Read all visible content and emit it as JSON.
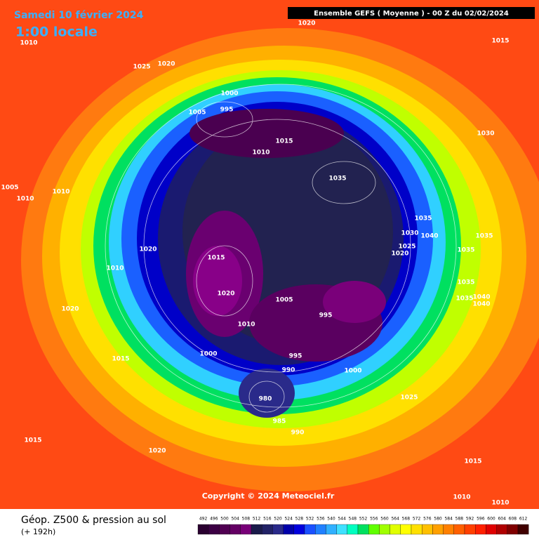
{
  "header": {
    "date": "Samedi 10 février 2024",
    "local_time": "1:00 locale",
    "model": "Ensemble GEFS  ( Moyenne )  -  00 Z du 02/02/2024"
  },
  "map": {
    "isobar_labels": [
      1020,
      1015,
      1010,
      1025,
      1020,
      1000,
      995,
      1005,
      1015,
      1010,
      1030,
      1035,
      1005,
      1010,
      1010,
      1035,
      1030,
      1040,
      1025,
      1020,
      1035,
      1020,
      1035,
      1010,
      1015,
      1035,
      1020,
      1005,
      1035,
      1040,
      1040,
      995,
      1020,
      1010,
      1000,
      995,
      990,
      1000,
      1015,
      1025,
      980,
      985,
      990,
      1015,
      1020,
      1015,
      1010,
      1010
    ],
    "copyright": "Copyright © 2024 Meteociel.fr"
  },
  "footer": {
    "title": "Géop. Z500 & pression au sol",
    "lead": "(+ 192h)"
  },
  "colorbar": {
    "labels": [
      492,
      496,
      500,
      504,
      508,
      512,
      516,
      520,
      524,
      528,
      532,
      536,
      540,
      544,
      548,
      552,
      556,
      560,
      564,
      568,
      572,
      576,
      580,
      584,
      588,
      592,
      596,
      600,
      604,
      608,
      612
    ],
    "colors": [
      "#2a0030",
      "#3c0044",
      "#500052",
      "#640064",
      "#780078",
      "#1a1a4a",
      "#222266",
      "#2a2a8a",
      "#0000aa",
      "#0000dd",
      "#1a50ff",
      "#2080ff",
      "#30b0ff",
      "#40e0ff",
      "#00ffc0",
      "#00e060",
      "#60ff00",
      "#a0ff00",
      "#e0ff00",
      "#ffff00",
      "#ffe000",
      "#ffc000",
      "#ffa000",
      "#ff8000",
      "#ff6000",
      "#ff4000",
      "#ff2000",
      "#e00000",
      "#b00000",
      "#800000",
      "#400000"
    ]
  }
}
